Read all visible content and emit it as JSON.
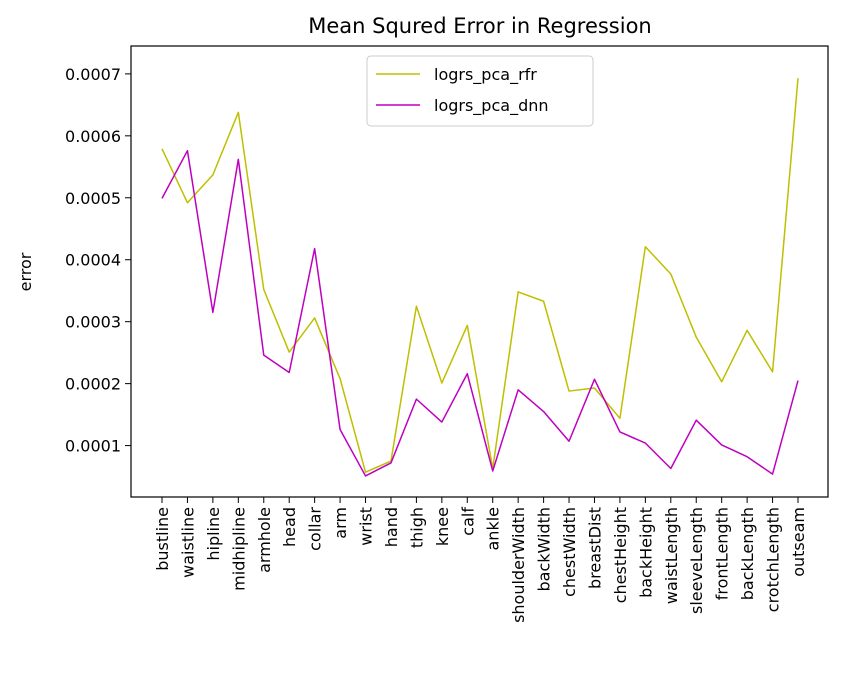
{
  "chart_data": {
    "type": "line",
    "title": "Mean Squred Error in Regression",
    "xlabel": "",
    "ylabel": "error",
    "categories": [
      "bustline",
      "waistline",
      "hipline",
      "midhipline",
      "armhole",
      "head",
      "collar",
      "arm",
      "wrist",
      "hand",
      "thigh",
      "knee",
      "calf",
      "ankle",
      "shoulderWidth",
      "backWidth",
      "chestWidth",
      "breastDist",
      "chestHeight",
      "backHeight",
      "waistLength",
      "sleeveLength",
      "frontLength",
      "backLength",
      "crotchLength",
      "outseam"
    ],
    "ylim": [
      1.7e-05,
      0.000745
    ],
    "yticks": [
      0.0001,
      0.0002,
      0.0003,
      0.0004,
      0.0005,
      0.0006,
      0.0007
    ],
    "ytick_labels": [
      "0.0001",
      "0.0002",
      "0.0003",
      "0.0004",
      "0.0005",
      "0.0006",
      "0.0007"
    ],
    "grid": false,
    "legend_position": "upper center",
    "series": [
      {
        "name": "logrs_pca_rfr",
        "color": "#bfbf00",
        "values": [
          0.000579,
          0.000492,
          0.000537,
          0.000638,
          0.000352,
          0.000251,
          0.000306,
          0.000208,
          5.7e-05,
          7.5e-05,
          0.000325,
          0.000201,
          0.000294,
          6.3e-05,
          0.000348,
          0.000333,
          0.000188,
          0.000193,
          0.000144,
          0.000421,
          0.000377,
          0.000275,
          0.000203,
          0.000286,
          0.000219,
          0.000693
        ]
      },
      {
        "name": "logrs_pca_dnn",
        "color": "#bf00bf",
        "values": [
          0.000499,
          0.000576,
          0.000315,
          0.000562,
          0.000246,
          0.000218,
          0.000418,
          0.000126,
          5.1e-05,
          7.2e-05,
          0.000175,
          0.000138,
          0.000216,
          5.9e-05,
          0.00019,
          0.000155,
          0.000107,
          0.000207,
          0.000122,
          0.000104,
          6.3e-05,
          0.000141,
          0.000101,
          8.2e-05,
          5.4e-05,
          0.000205
        ]
      }
    ]
  }
}
